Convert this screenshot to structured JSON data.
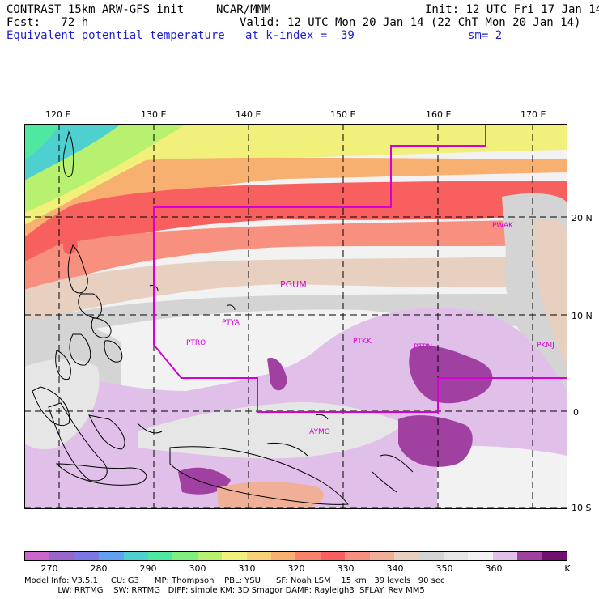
{
  "header": {
    "line1_left": "CONTRAST 15km ARW-GFS init",
    "line1_mid": "NCAR/MMM",
    "line1_right": "Init: 12 UTC Fri 17 Jan 14",
    "line2_left": "Fcst:   72 h",
    "line2_right": "Valid: 12 UTC Mon 20 Jan 14 (22 ChT Mon 20 Jan 14)",
    "line3_field": "Equivalent potential temperature",
    "line3_level": "at k-index =  39",
    "line3_smooth": "sm= 2"
  },
  "map": {
    "lon_labels": [
      "120 E",
      "130 E",
      "140 E",
      "150 E",
      "160 E",
      "170 E"
    ],
    "lat_labels": [
      "20 N",
      "10 N",
      "0",
      "10 S"
    ],
    "stations": [
      {
        "id": "PGUM",
        "big": true
      },
      {
        "id": "PTYA",
        "big": false
      },
      {
        "id": "PTRO",
        "big": false
      },
      {
        "id": "PTKK",
        "big": false
      },
      {
        "id": "PTPN",
        "big": false
      },
      {
        "id": "PKMJ",
        "big": false
      },
      {
        "id": "PWAK",
        "big": false
      },
      {
        "id": "AYMO",
        "big": false
      }
    ],
    "boundary_color": "#d600d6"
  },
  "colorbar": {
    "colors": [
      "#cc66cc",
      "#9966cc",
      "#7b78e6",
      "#5fa0f0",
      "#4fd0d0",
      "#4fe8a0",
      "#7ff07f",
      "#b8f070",
      "#f0f07a",
      "#f8d078",
      "#f8b070",
      "#f8836a",
      "#f86060",
      "#f89080",
      "#f0b098",
      "#e8d0c0",
      "#d4d4d4",
      "#e6e6e6",
      "#f2f2f2",
      "#e0c0e8",
      "#a040a0",
      "#701070"
    ],
    "labels": [
      "270",
      "280",
      "290",
      "300",
      "310",
      "320",
      "330",
      "340",
      "350",
      "360",
      "K"
    ]
  },
  "model_info": {
    "line1": "Model Info: V3.5.1     CU: G3      MP: Thompson    PBL: YSU      SF: Noah LSM    15 km   39 levels   90 sec",
    "line2": "             LW: RRTMG    SW: RRTMG   DIFF: simple KM: 3D Smagor DAMP: Rayleigh3  SFLAY: Rev MM5"
  }
}
